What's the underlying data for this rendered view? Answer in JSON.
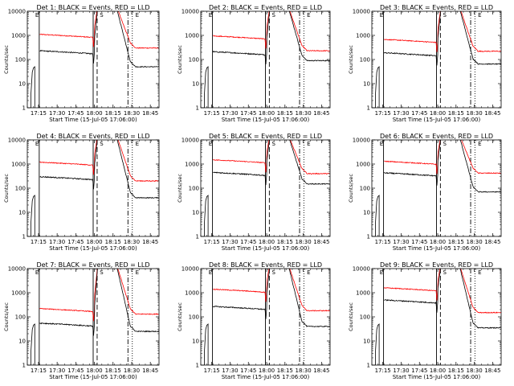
{
  "figure": {
    "line_colors": {
      "events": "#000000",
      "lld": "#ff0000"
    },
    "style": "IDL lightcurve grid"
  },
  "chart_data": [
    {
      "type": "line",
      "title": "Det 1: BLACK = Events, RED = LLD",
      "xlabel": "Start Time (15-Jul-05 17:06:00)",
      "ylabel": "Counts/sec",
      "yscale": "log",
      "ylim": [
        1,
        10000
      ],
      "xlim": [
        "17:06",
        "18:52"
      ],
      "x_tick_labels": [
        "17:15",
        "17:30",
        "17:45",
        "18:00",
        "18:15",
        "18:30",
        "18:45"
      ],
      "y_tick_labels": [
        "1",
        "10",
        "100",
        "1000",
        "10000"
      ],
      "events_level": 230,
      "lld_level": 1100,
      "after_events": 50,
      "after_lld": 300
    },
    {
      "type": "line",
      "title": "Det 2: BLACK = Events, RED = LLD",
      "xlabel": "Start Time (15-Jul-05 17:06:00)",
      "ylabel": "Counts/sec",
      "yscale": "log",
      "ylim": [
        1,
        10000
      ],
      "xlim": [
        "17:06",
        "18:52"
      ],
      "x_tick_labels": [
        "17:15",
        "17:30",
        "17:45",
        "18:00",
        "18:15",
        "18:30",
        "18:45"
      ],
      "y_tick_labels": [
        "1",
        "10",
        "100",
        "1000",
        "10000"
      ],
      "events_level": 210,
      "lld_level": 950,
      "after_events": 90,
      "after_lld": 230
    },
    {
      "type": "line",
      "title": "Det 3: BLACK = Events, RED = LLD",
      "xlabel": "Start Time (15-Jul-05 17:06:00)",
      "ylabel": "Counts/sec",
      "yscale": "log",
      "ylim": [
        1,
        10000
      ],
      "xlim": [
        "17:06",
        "18:52"
      ],
      "x_tick_labels": [
        "17:15",
        "17:30",
        "17:45",
        "18:00",
        "18:15",
        "18:30",
        "18:45"
      ],
      "y_tick_labels": [
        "1",
        "10",
        "100",
        "1000",
        "10000"
      ],
      "events_level": 190,
      "lld_level": 680,
      "after_events": 65,
      "after_lld": 220
    },
    {
      "type": "line",
      "title": "Det 4: BLACK = Events, RED = LLD",
      "xlabel": "Start Time (15-Jul-05 17:06:00)",
      "ylabel": "Counts/sec",
      "yscale": "log",
      "ylim": [
        1,
        10000
      ],
      "xlim": [
        "17:06",
        "18:52"
      ],
      "x_tick_labels": [
        "17:15",
        "17:30",
        "17:45",
        "18:00",
        "18:15",
        "18:30",
        "18:45"
      ],
      "y_tick_labels": [
        "1",
        "10",
        "100",
        "1000",
        "10000"
      ],
      "events_level": 300,
      "lld_level": 1200,
      "after_events": 40,
      "after_lld": 200
    },
    {
      "type": "line",
      "title": "Det 5: BLACK = Events, RED = LLD",
      "xlabel": "Start Time (15-Jul-05 17:06:00)",
      "ylabel": "Counts/sec",
      "yscale": "log",
      "ylim": [
        1,
        10000
      ],
      "xlim": [
        "17:06",
        "18:52"
      ],
      "x_tick_labels": [
        "17:15",
        "17:30",
        "17:45",
        "18:00",
        "18:15",
        "18:30",
        "18:45"
      ],
      "y_tick_labels": [
        "1",
        "10",
        "100",
        "1000",
        "10000"
      ],
      "events_level": 450,
      "lld_level": 1500,
      "after_events": 150,
      "after_lld": 400
    },
    {
      "type": "line",
      "title": "Det 6: BLACK = Events, RED = LLD",
      "xlabel": "Start Time (15-Jul-05 17:06:00)",
      "ylabel": "Counts/sec",
      "yscale": "log",
      "ylim": [
        1,
        10000
      ],
      "xlim": [
        "17:06",
        "18:52"
      ],
      "x_tick_labels": [
        "17:15",
        "17:30",
        "17:45",
        "18:00",
        "18:15",
        "18:30",
        "18:45"
      ],
      "y_tick_labels": [
        "1",
        "10",
        "100",
        "1000",
        "10000"
      ],
      "events_level": 430,
      "lld_level": 1300,
      "after_events": 70,
      "after_lld": 420
    },
    {
      "type": "line",
      "title": "Det 7: BLACK = Events, RED = LLD",
      "xlabel": "Start Time (15-Jul-05 17:06:00)",
      "ylabel": "Counts/sec",
      "yscale": "log",
      "ylim": [
        1,
        10000
      ],
      "xlim": [
        "17:06",
        "18:52"
      ],
      "x_tick_labels": [
        "17:15",
        "17:30",
        "17:45",
        "18:00",
        "18:15",
        "18:30",
        "18:45"
      ],
      "y_tick_labels": [
        "1",
        "10",
        "100",
        "1000",
        "10000"
      ],
      "events_level": 55,
      "lld_level": 220,
      "after_events": 25,
      "after_lld": 130
    },
    {
      "type": "line",
      "title": "Det 8: BLACK = Events, RED = LLD",
      "xlabel": "Start Time (15-Jul-05 17:06:00)",
      "ylabel": "Counts/sec",
      "yscale": "log",
      "ylim": [
        1,
        10000
      ],
      "xlim": [
        "17:06",
        "18:52"
      ],
      "x_tick_labels": [
        "17:15",
        "17:30",
        "17:45",
        "18:00",
        "18:15",
        "18:30",
        "18:45"
      ],
      "y_tick_labels": [
        "1",
        "10",
        "100",
        "1000",
        "10000"
      ],
      "events_level": 270,
      "lld_level": 1400,
      "after_events": 40,
      "after_lld": 180
    },
    {
      "type": "line",
      "title": "Det 9: BLACK = Events, RED = LLD",
      "xlabel": "Start Time (15-Jul-05 17:06:00)",
      "ylabel": "Counts/sec",
      "yscale": "log",
      "ylim": [
        1,
        10000
      ],
      "xlim": [
        "17:06",
        "18:52"
      ],
      "x_tick_labels": [
        "17:15",
        "17:30",
        "17:45",
        "18:00",
        "18:15",
        "18:30",
        "18:45"
      ],
      "y_tick_labels": [
        "1",
        "10",
        "100",
        "1000",
        "10000"
      ],
      "events_level": 500,
      "lld_level": 1600,
      "after_events": 35,
      "after_lld": 150
    }
  ]
}
